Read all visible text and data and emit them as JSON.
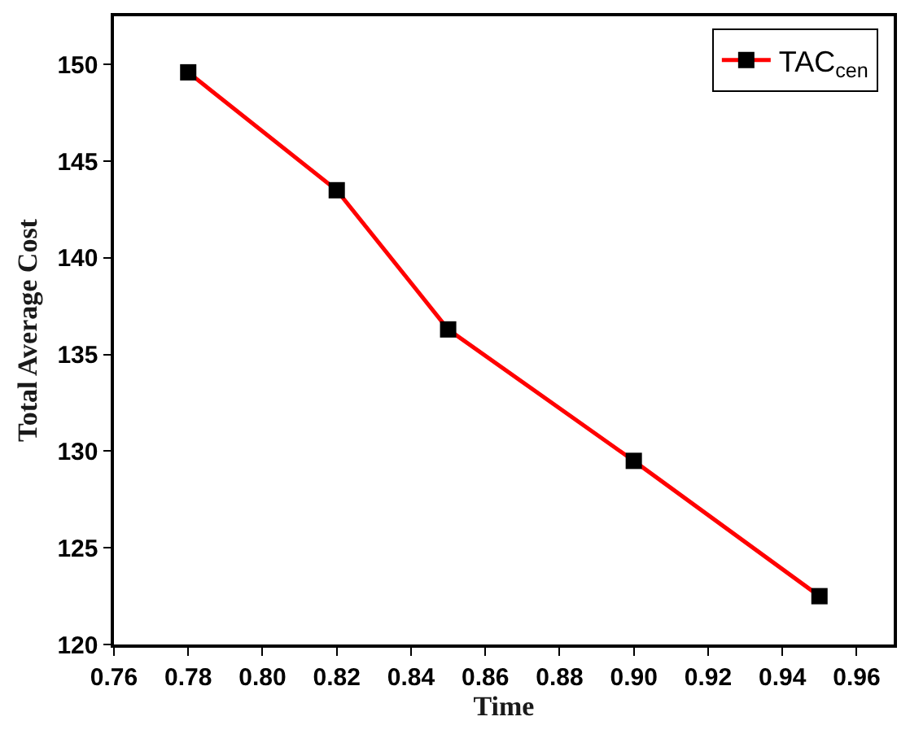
{
  "chart_data": {
    "type": "line",
    "xlabel": "Time",
    "ylabel": "Total Average Cost",
    "x": [
      0.78,
      0.82,
      0.85,
      0.9,
      0.95
    ],
    "series": [
      {
        "name": "TAC$_{cen}$",
        "color": "#ff0000",
        "values": [
          149.6,
          143.5,
          136.3,
          129.5,
          122.5
        ]
      }
    ],
    "xlim": [
      0.76,
      0.97
    ],
    "xticks": [
      {
        "value": 0.76,
        "label": "0.76"
      },
      {
        "value": 0.78,
        "label": "0.78"
      },
      {
        "value": 0.8,
        "label": "0.80"
      },
      {
        "value": 0.82,
        "label": "0.82"
      },
      {
        "value": 0.84,
        "label": "0.84"
      },
      {
        "value": 0.86,
        "label": "0.86"
      },
      {
        "value": 0.88,
        "label": "0.88"
      },
      {
        "value": 0.9,
        "label": "0.90"
      },
      {
        "value": 0.92,
        "label": "0.92"
      },
      {
        "value": 0.94,
        "label": "0.94"
      },
      {
        "value": 0.96,
        "label": "0.96"
      }
    ],
    "ylim": [
      120,
      152.5
    ],
    "yticks": [
      120,
      125,
      130,
      135,
      140,
      145,
      150
    ],
    "legend": "top right",
    "marker": "square",
    "line_style": "solid"
  }
}
